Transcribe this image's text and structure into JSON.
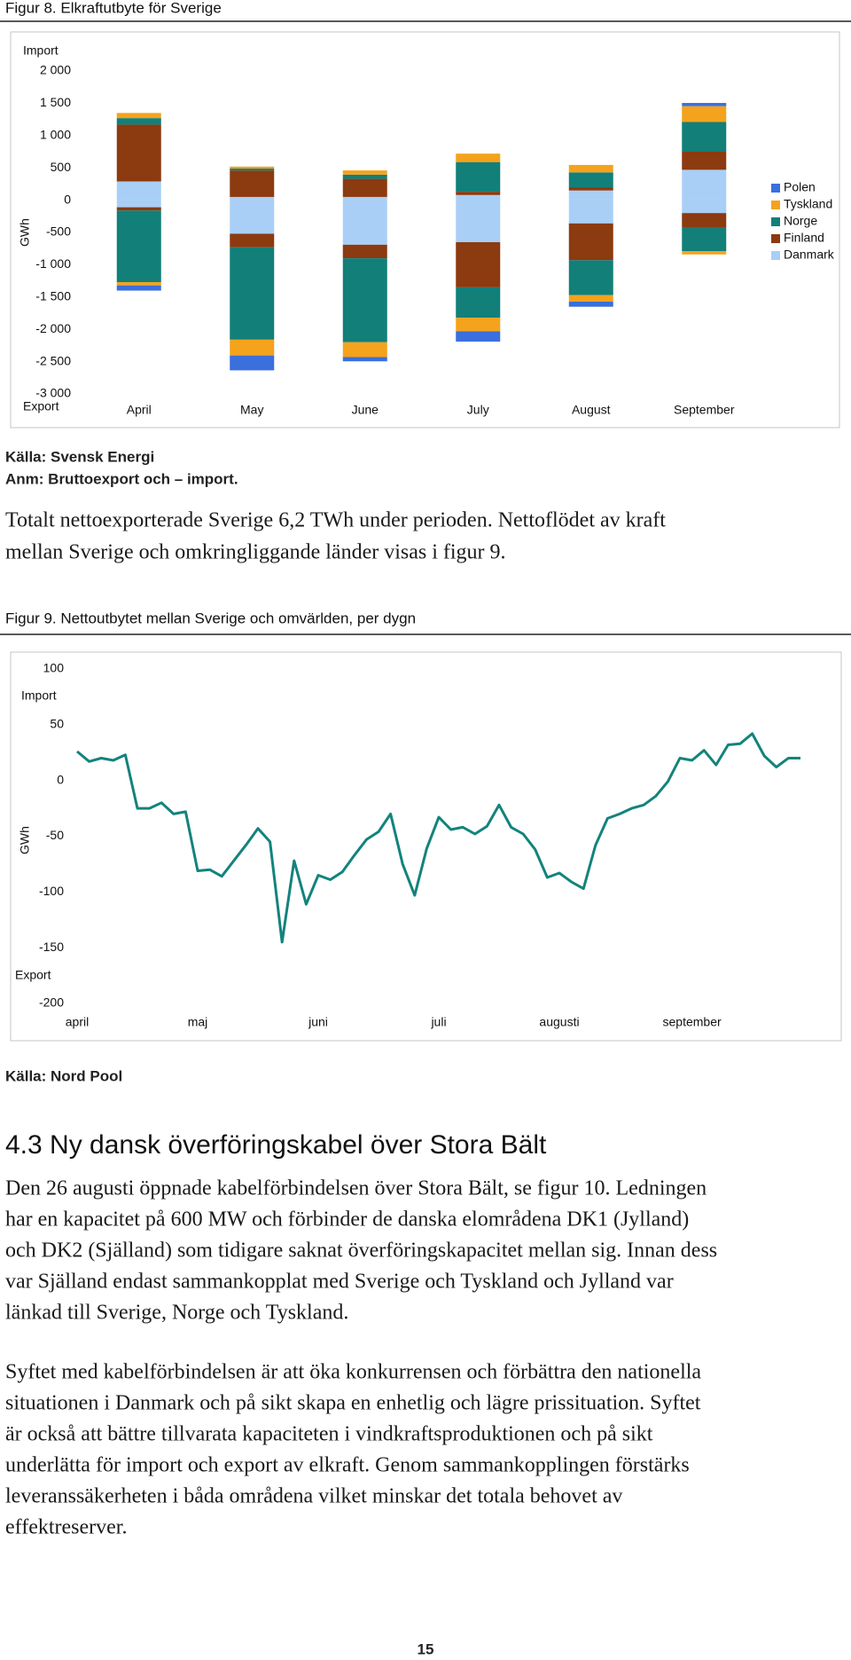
{
  "intro_lines": [
    "Totalt nettoexporterade Sverige 6,2 TWh under perioden. Nettoflödet av kraft",
    "mellan Sverige och omkringliggande länder visas i figur 9."
  ],
  "section": {
    "heading": "4.3 Ny dansk överföringskabel över Stora Bält",
    "paragraphs": [
      [
        "Den 26 augusti öppnade kabelförbindelsen över Stora Bält, se figur 10. Ledningen",
        "har en kapacitet på 600 MW och förbinder de danska elområdena DK1 (Jylland)",
        "och DK2 (Själland) som tidigare saknat överföringskapacitet mellan sig. Innan dess",
        "var Själland endast sammankopplat med Sverige och Tyskland och Jylland var",
        "länkad till Sverige, Norge och Tyskland."
      ],
      [
        "Syftet med kabelförbindelsen är att öka konkurrensen och förbättra den nationella",
        "situationen i Danmark och på sikt skapa en enhetlig och lägre prissituation. Syftet",
        "är också att bättre tillvarata kapaciteten i vindkraftsproduktionen och på sikt",
        "underlätta för import och export av elkraft. Genom sammankopplingen förstärks",
        "leveranssäkerheten i båda områdena vilket minskar det totala behovet av",
        "effektreserver."
      ]
    ]
  },
  "page_number": "15",
  "chart_data": [
    {
      "type": "bar",
      "stacked": true,
      "title": "Figur 8. Elkraftutbyte för Sverige",
      "y_label": "GWh",
      "import_label": "Import",
      "export_label": "Export",
      "source": "Källa: Svensk Energi",
      "note": "Anm: Bruttoexport och – import.",
      "categories": [
        "April",
        "May",
        "June",
        "July",
        "August",
        "September"
      ],
      "ylim": [
        -3000,
        2000
      ],
      "yticks": [
        {
          "value": 2000,
          "label": "2 000"
        },
        {
          "value": 1500,
          "label": "1 500"
        },
        {
          "value": 1000,
          "label": "1 000"
        },
        500,
        0,
        -500,
        {
          "value": -1000,
          "label": "-1 000"
        },
        {
          "value": -1500,
          "label": "-1 500"
        },
        {
          "value": -2000,
          "label": "-2 000"
        },
        {
          "value": -2500,
          "label": "-2 500"
        },
        {
          "value": -3000,
          "label": "-3 000"
        }
      ],
      "grid": false,
      "legend": "right",
      "series": [
        {
          "name": "Polen",
          "color": "#3a6fdc",
          "import": [
            0,
            0,
            0,
            0,
            0,
            50
          ],
          "export": [
            -80,
            -230,
            -65,
            -160,
            -80,
            0
          ]
        },
        {
          "name": "Tyskland",
          "color": "#f5a21c",
          "import": [
            80,
            30,
            65,
            130,
            115,
            245
          ],
          "export": [
            -50,
            -245,
            -230,
            -210,
            -100,
            -50
          ]
        },
        {
          "name": "Norge",
          "color": "#127f79",
          "import": [
            100,
            30,
            65,
            460,
            230,
            460
          ],
          "export": [
            -1110,
            -1430,
            -1300,
            -470,
            -540,
            -360
          ]
        },
        {
          "name": "Finland",
          "color": "#8c3a10",
          "import": [
            880,
            410,
            280,
            50,
            50,
            280
          ],
          "export": [
            -50,
            -210,
            -210,
            -700,
            -570,
            -230
          ]
        },
        {
          "name": "Danmark",
          "color": "#a9cff6",
          "import": [
            290,
            50,
            50,
            80,
            150,
            470
          ],
          "export": [
            -110,
            -520,
            -690,
            -650,
            -360,
            -200
          ]
        }
      ]
    },
    {
      "type": "line",
      "title": "Figur 9. Nettoutbytet mellan Sverige och omvärlden, per dygn",
      "y_label": "GWh",
      "import_label": "Import",
      "export_label": "Export",
      "source": "Källa: Nord Pool",
      "categories": [
        "april",
        null,
        null,
        null,
        null,
        null,
        null,
        null,
        null,
        null,
        "maj",
        null,
        null,
        null,
        null,
        null,
        null,
        null,
        null,
        null,
        "juni",
        null,
        null,
        null,
        null,
        null,
        null,
        null,
        null,
        null,
        "juli",
        null,
        null,
        null,
        null,
        null,
        null,
        null,
        null,
        null,
        "augusti",
        null,
        null,
        null,
        null,
        null,
        null,
        null,
        null,
        null,
        null,
        "september",
        null,
        null,
        null,
        null,
        null,
        null,
        null,
        null,
        null
      ],
      "values": [
        26,
        17,
        20,
        18,
        23,
        -25,
        -25,
        -20,
        -30,
        -28,
        -81,
        -80,
        -86,
        -72,
        -58,
        -43,
        -55,
        -145,
        -72,
        -111,
        -85,
        -89,
        -82,
        -67,
        -53,
        -46,
        -30,
        -75,
        -103,
        -61,
        -33,
        -44,
        -42,
        -48,
        -41,
        -22,
        -42,
        -48,
        -62,
        -87,
        -83,
        -91,
        -97,
        -58,
        -34,
        -30,
        -25,
        -22,
        -14,
        -1,
        20,
        18,
        27,
        14,
        32,
        33,
        42,
        22,
        12,
        20,
        20
      ],
      "color": "#13837c",
      "ylim": [
        -200,
        100
      ],
      "yticks": [
        100,
        50,
        0,
        -50,
        -100,
        -150,
        -200
      ],
      "grid": false
    }
  ]
}
